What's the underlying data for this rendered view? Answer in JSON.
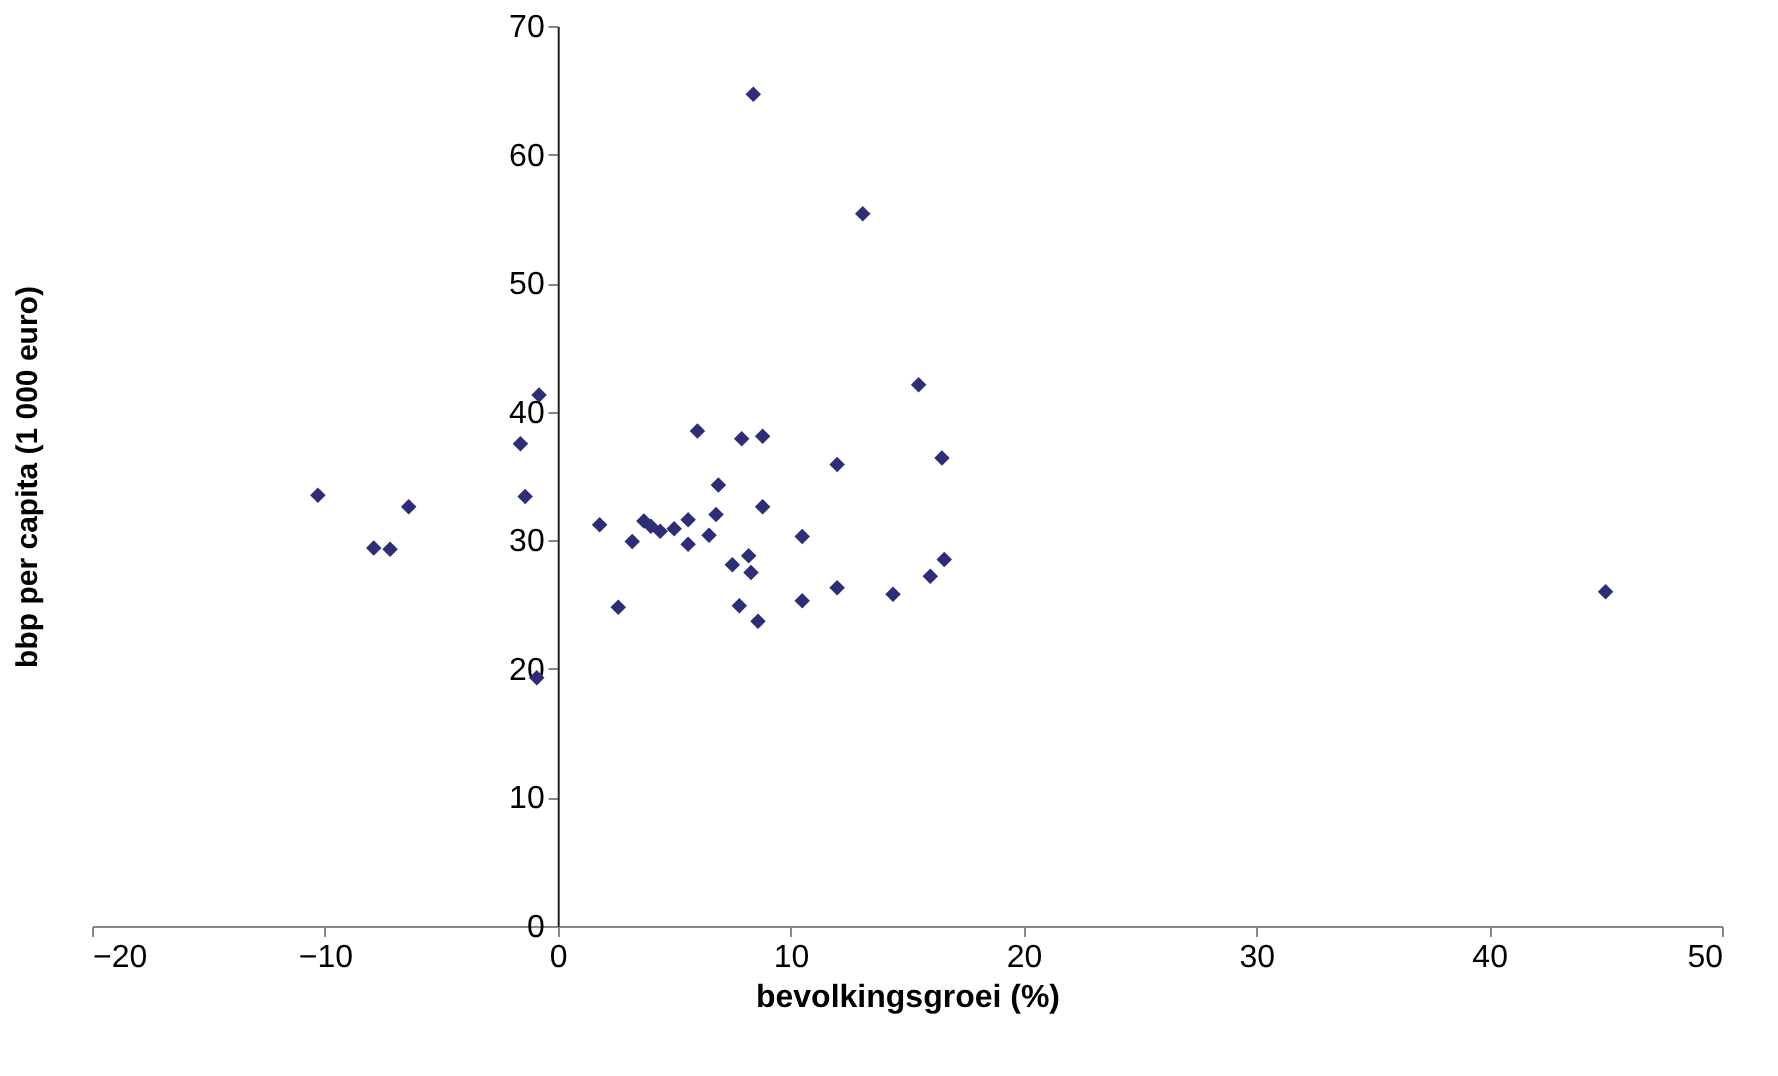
{
  "chart_data": {
    "type": "scatter",
    "xlabel": "bevolkingsgroei (%)",
    "ylabel": "bbp per capita (1 000 euro)",
    "x": [
      -10.3,
      -7.9,
      -7.2,
      -6.4,
      -1.6,
      -1.4,
      -0.8,
      -0.9,
      1.8,
      2.6,
      3.2,
      3.7,
      4.0,
      4.4,
      5.0,
      5.6,
      5.6,
      6.0,
      6.5,
      6.8,
      6.9,
      7.5,
      7.8,
      7.9,
      8.2,
      8.3,
      8.4,
      8.6,
      8.8,
      8.8,
      10.5,
      10.5,
      12.0,
      12.0,
      13.1,
      14.4,
      15.5,
      16.0,
      16.5,
      16.6,
      45.0
    ],
    "series": [
      {
        "color": "#2e2e78",
        "values": [
          33.5,
          29.4,
          29.3,
          32.6,
          37.5,
          33.4,
          41.3,
          19.3,
          31.2,
          24.8,
          29.9,
          31.5,
          31.1,
          30.7,
          30.9,
          31.6,
          29.7,
          38.5,
          30.4,
          32.0,
          34.3,
          28.1,
          24.9,
          37.9,
          28.8,
          27.5,
          64.7,
          23.7,
          38.1,
          32.6,
          30.3,
          25.3,
          35.9,
          26.3,
          55.4,
          25.8,
          42.1,
          27.2,
          36.4,
          28.5,
          26.0
        ]
      }
    ],
    "xlim": [
      -20,
      50
    ],
    "xticks": [
      -20,
      -10,
      0,
      10,
      20,
      30,
      40,
      50
    ],
    "ylim": [
      0,
      70
    ],
    "yticks": [
      0,
      10,
      20,
      30,
      40,
      50,
      60,
      70
    ],
    "marker": "diamond",
    "grid": false
  }
}
